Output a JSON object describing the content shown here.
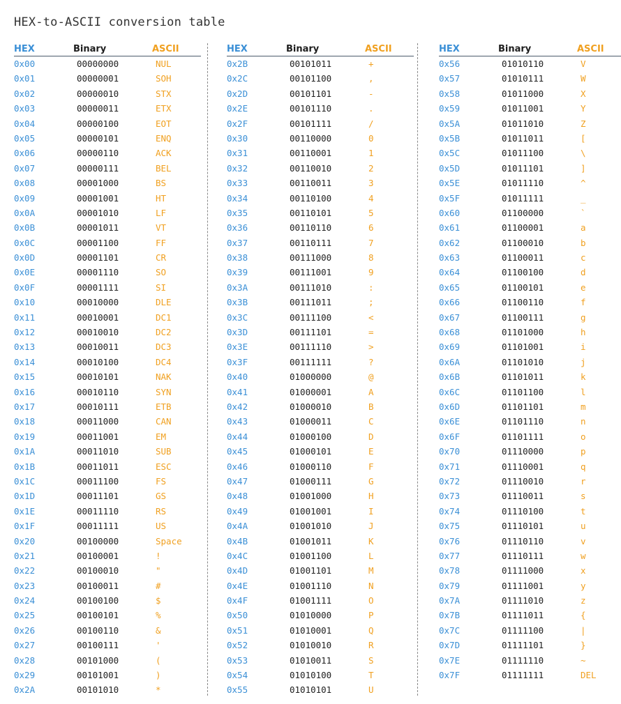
{
  "title": "HEX-to-ASCII conversion table",
  "headers": {
    "hex": "HEX",
    "binary": "Binary",
    "ascii": "ASCII"
  },
  "colors": {
    "hex": "#3a8fd6",
    "binary": "#1e1e1e",
    "ascii": "#f0a020",
    "header": "#2a78c8"
  },
  "columns": [
    [
      [
        "0x00",
        "00000000",
        "NUL"
      ],
      [
        "0x01",
        "00000001",
        "SOH"
      ],
      [
        "0x02",
        "00000010",
        "STX"
      ],
      [
        "0x03",
        "00000011",
        "ETX"
      ],
      [
        "0x04",
        "00000100",
        "EOT"
      ],
      [
        "0x05",
        "00000101",
        "ENQ"
      ],
      [
        "0x06",
        "00000110",
        "ACK"
      ],
      [
        "0x07",
        "00000111",
        "BEL"
      ],
      [
        "0x08",
        "00001000",
        "BS"
      ],
      [
        "0x09",
        "00001001",
        "HT"
      ],
      [
        "0x0A",
        "00001010",
        "LF"
      ],
      [
        "0x0B",
        "00001011",
        "VT"
      ],
      [
        "0x0C",
        "00001100",
        "FF"
      ],
      [
        "0x0D",
        "00001101",
        "CR"
      ],
      [
        "0x0E",
        "00001110",
        "SO"
      ],
      [
        "0x0F",
        "00001111",
        "SI"
      ],
      [
        "0x10",
        "00010000",
        "DLE"
      ],
      [
        "0x11",
        "00010001",
        "DC1"
      ],
      [
        "0x12",
        "00010010",
        "DC2"
      ],
      [
        "0x13",
        "00010011",
        "DC3"
      ],
      [
        "0x14",
        "00010100",
        "DC4"
      ],
      [
        "0x15",
        "00010101",
        "NAK"
      ],
      [
        "0x16",
        "00010110",
        "SYN"
      ],
      [
        "0x17",
        "00010111",
        "ETB"
      ],
      [
        "0x18",
        "00011000",
        "CAN"
      ],
      [
        "0x19",
        "00011001",
        "EM"
      ],
      [
        "0x1A",
        "00011010",
        "SUB"
      ],
      [
        "0x1B",
        "00011011",
        "ESC"
      ],
      [
        "0x1C",
        "00011100",
        "FS"
      ],
      [
        "0x1D",
        "00011101",
        "GS"
      ],
      [
        "0x1E",
        "00011110",
        "RS"
      ],
      [
        "0x1F",
        "00011111",
        "US"
      ],
      [
        "0x20",
        "00100000",
        "Space"
      ],
      [
        "0x21",
        "00100001",
        "!"
      ],
      [
        "0x22",
        "00100010",
        "\""
      ],
      [
        "0x23",
        "00100011",
        "#"
      ],
      [
        "0x24",
        "00100100",
        "$"
      ],
      [
        "0x25",
        "00100101",
        "%"
      ],
      [
        "0x26",
        "00100110",
        "&"
      ],
      [
        "0x27",
        "00100111",
        "'"
      ],
      [
        "0x28",
        "00101000",
        "("
      ],
      [
        "0x29",
        "00101001",
        ")"
      ],
      [
        "0x2A",
        "00101010",
        "*"
      ]
    ],
    [
      [
        "0x2B",
        "00101011",
        "+"
      ],
      [
        "0x2C",
        "00101100",
        ","
      ],
      [
        "0x2D",
        "00101101",
        "-"
      ],
      [
        "0x2E",
        "00101110",
        "."
      ],
      [
        "0x2F",
        "00101111",
        "/"
      ],
      [
        "0x30",
        "00110000",
        "0"
      ],
      [
        "0x31",
        "00110001",
        "1"
      ],
      [
        "0x32",
        "00110010",
        "2"
      ],
      [
        "0x33",
        "00110011",
        "3"
      ],
      [
        "0x34",
        "00110100",
        "4"
      ],
      [
        "0x35",
        "00110101",
        "5"
      ],
      [
        "0x36",
        "00110110",
        "6"
      ],
      [
        "0x37",
        "00110111",
        "7"
      ],
      [
        "0x38",
        "00111000",
        "8"
      ],
      [
        "0x39",
        "00111001",
        "9"
      ],
      [
        "0x3A",
        "00111010",
        ":"
      ],
      [
        "0x3B",
        "00111011",
        ";"
      ],
      [
        "0x3C",
        "00111100",
        "<"
      ],
      [
        "0x3D",
        "00111101",
        "="
      ],
      [
        "0x3E",
        "00111110",
        ">"
      ],
      [
        "0x3F",
        "00111111",
        "?"
      ],
      [
        "0x40",
        "01000000",
        "@"
      ],
      [
        "0x41",
        "01000001",
        "A"
      ],
      [
        "0x42",
        "01000010",
        "B"
      ],
      [
        "0x43",
        "01000011",
        "C"
      ],
      [
        "0x44",
        "01000100",
        "D"
      ],
      [
        "0x45",
        "01000101",
        "E"
      ],
      [
        "0x46",
        "01000110",
        "F"
      ],
      [
        "0x47",
        "01000111",
        "G"
      ],
      [
        "0x48",
        "01001000",
        "H"
      ],
      [
        "0x49",
        "01001001",
        "I"
      ],
      [
        "0x4A",
        "01001010",
        "J"
      ],
      [
        "0x4B",
        "01001011",
        "K"
      ],
      [
        "0x4C",
        "01001100",
        "L"
      ],
      [
        "0x4D",
        "01001101",
        "M"
      ],
      [
        "0x4E",
        "01001110",
        "N"
      ],
      [
        "0x4F",
        "01001111",
        "O"
      ],
      [
        "0x50",
        "01010000",
        "P"
      ],
      [
        "0x51",
        "01010001",
        "Q"
      ],
      [
        "0x52",
        "01010010",
        "R"
      ],
      [
        "0x53",
        "01010011",
        "S"
      ],
      [
        "0x54",
        "01010100",
        "T"
      ],
      [
        "0x55",
        "01010101",
        "U"
      ]
    ],
    [
      [
        "0x56",
        "01010110",
        "V"
      ],
      [
        "0x57",
        "01010111",
        "W"
      ],
      [
        "0x58",
        "01011000",
        "X"
      ],
      [
        "0x59",
        "01011001",
        "Y"
      ],
      [
        "0x5A",
        "01011010",
        "Z"
      ],
      [
        "0x5B",
        "01011011",
        "["
      ],
      [
        "0x5C",
        "01011100",
        "\\"
      ],
      [
        "0x5D",
        "01011101",
        "]"
      ],
      [
        "0x5E",
        "01011110",
        "^"
      ],
      [
        "0x5F",
        "01011111",
        "_"
      ],
      [
        "0x60",
        "01100000",
        "`"
      ],
      [
        "0x61",
        "01100001",
        "a"
      ],
      [
        "0x62",
        "01100010",
        "b"
      ],
      [
        "0x63",
        "01100011",
        "c"
      ],
      [
        "0x64",
        "01100100",
        "d"
      ],
      [
        "0x65",
        "01100101",
        "e"
      ],
      [
        "0x66",
        "01100110",
        "f"
      ],
      [
        "0x67",
        "01100111",
        "g"
      ],
      [
        "0x68",
        "01101000",
        "h"
      ],
      [
        "0x69",
        "01101001",
        "i"
      ],
      [
        "0x6A",
        "01101010",
        "j"
      ],
      [
        "0x6B",
        "01101011",
        "k"
      ],
      [
        "0x6C",
        "01101100",
        "l"
      ],
      [
        "0x6D",
        "01101101",
        "m"
      ],
      [
        "0x6E",
        "01101110",
        "n"
      ],
      [
        "0x6F",
        "01101111",
        "o"
      ],
      [
        "0x70",
        "01110000",
        "p"
      ],
      [
        "0x71",
        "01110001",
        "q"
      ],
      [
        "0x72",
        "01110010",
        "r"
      ],
      [
        "0x73",
        "01110011",
        "s"
      ],
      [
        "0x74",
        "01110100",
        "t"
      ],
      [
        "0x75",
        "01110101",
        "u"
      ],
      [
        "0x76",
        "01110110",
        "v"
      ],
      [
        "0x77",
        "01110111",
        "w"
      ],
      [
        "0x78",
        "01111000",
        "x"
      ],
      [
        "0x79",
        "01111001",
        "y"
      ],
      [
        "0x7A",
        "01111010",
        "z"
      ],
      [
        "0x7B",
        "01111011",
        "{"
      ],
      [
        "0x7C",
        "01111100",
        "|"
      ],
      [
        "0x7D",
        "01111101",
        "}"
      ],
      [
        "0x7E",
        "01111110",
        "~"
      ],
      [
        "0x7F",
        "01111111",
        "DEL"
      ]
    ]
  ]
}
